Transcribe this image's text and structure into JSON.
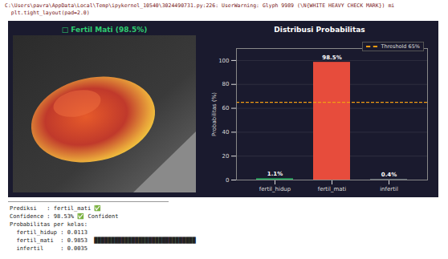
{
  "warning": [
    "C:\\Users\\pavra\\AppData\\Local\\Temp\\ipykernel_10540\\3024490731.py:226: UserWarning: Glyph 9989 (\\N{WHITE HEAVY CHECK MARK}) mi",
    "  plt.tight_layout(pad=2.0)"
  ],
  "image_panel": {
    "title": "□ Fertil Mati (98.5%)"
  },
  "chart_data": {
    "type": "bar",
    "title": "Distribusi Probabilitas",
    "y_label": "Probabilitas (%)",
    "categories": [
      "fertil_hidup",
      "fertil_mati",
      "infertil"
    ],
    "values": [
      1.1,
      98.5,
      0.4
    ],
    "value_labels": [
      "1.1%",
      "98.5%",
      "0.4%"
    ],
    "colors": [
      "#27ae60",
      "#e74c3c",
      "#95a5a6"
    ],
    "ylim": [
      0,
      110
    ],
    "yticks": [
      0,
      20,
      40,
      60,
      80,
      100
    ],
    "grid": true,
    "data_labels": true,
    "legend": "top-right",
    "threshold": {
      "value": 65,
      "label": "Threshold 65%",
      "color": "#f39c12"
    }
  },
  "console": [
    "Prediksi   : fertil_mati ✅",
    "Confidence : 98.53% ✅ Confident",
    "Probabilitas per kelas:",
    "  fertil_hidup : 0.0113",
    "  fertil_mati  : 0.9853  ██████████████████████████████",
    "  infertil     : 0.0035"
  ]
}
